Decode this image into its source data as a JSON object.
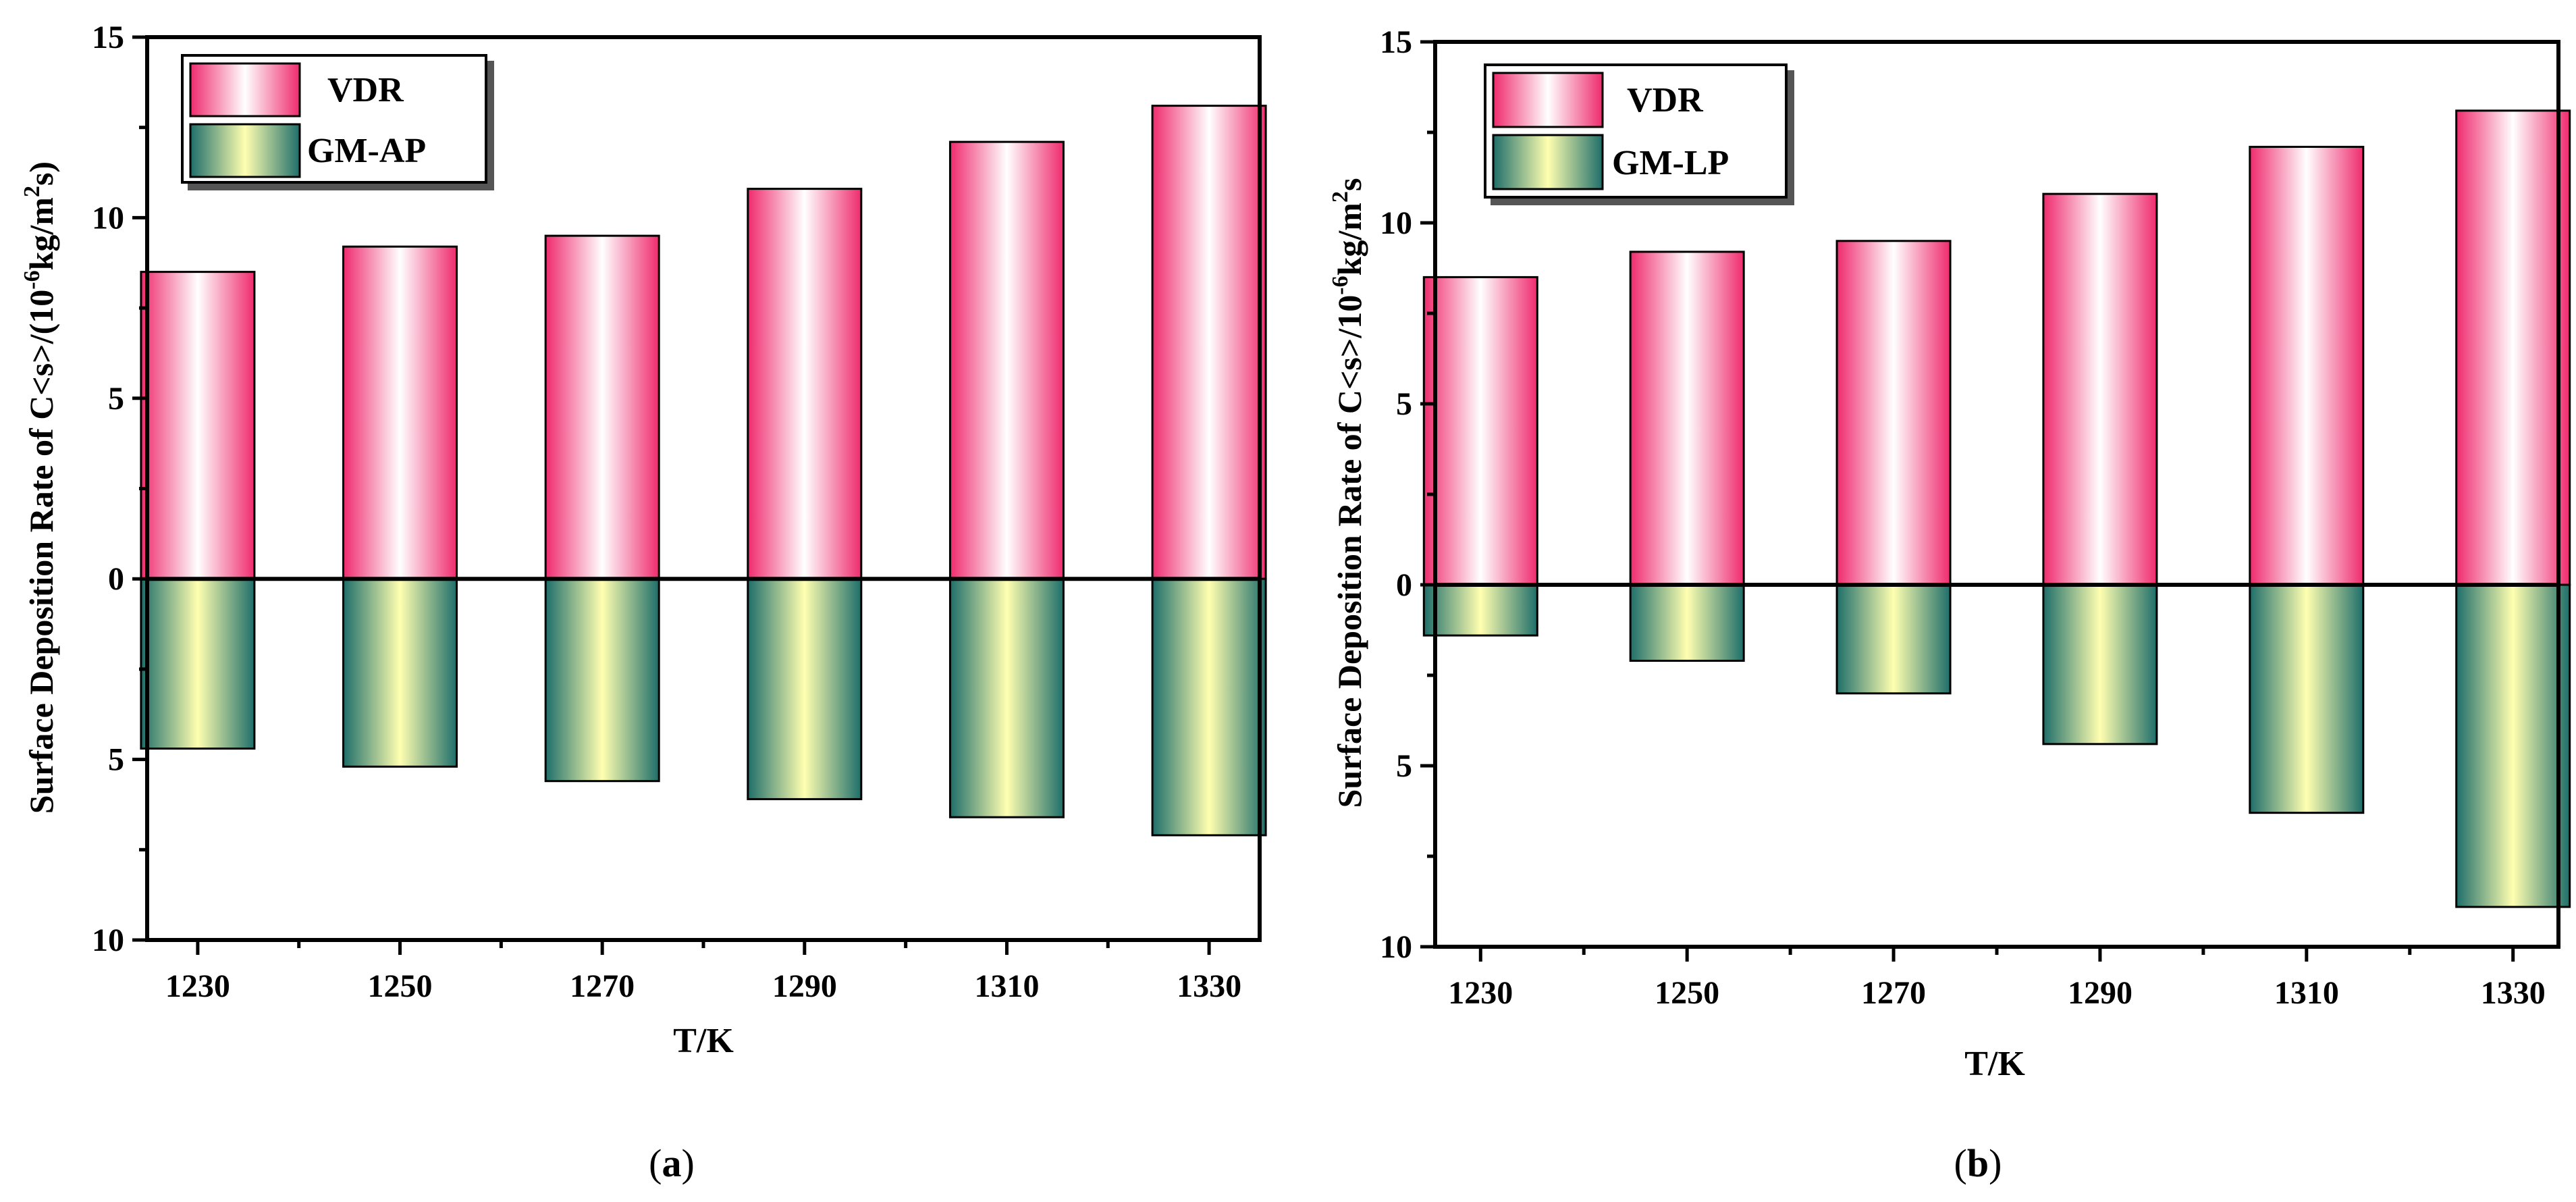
{
  "colors": {
    "vdr_edge": "#ef2b6e",
    "vdr_center": "#ffffff",
    "gm_edge": "#1e6e6a",
    "gm_center": "#ffffb0",
    "axis": "#000000"
  },
  "chart_data": [
    {
      "type": "bar",
      "panel": "a",
      "caption": "(a)",
      "caption_letter": "a",
      "categories": [
        "1230",
        "1250",
        "1270",
        "1290",
        "1310",
        "1330"
      ],
      "xlabel": "T/K",
      "ylabel": "Surface Deposition Rate of C<s>/(10",
      "ylabel_exp": "-6",
      "ylabel_mid": "kg/m",
      "ylabel_exp2": "2",
      "ylabel_tail": "s)",
      "ylim": [
        -10,
        15
      ],
      "yticks": [
        -10,
        -5,
        0,
        5,
        10,
        15
      ],
      "ytick_labels": [
        "10",
        "5",
        "0",
        "5",
        "10",
        "15"
      ],
      "legend_position": "top-left",
      "series": [
        {
          "name": "VDR",
          "values": [
            8.5,
            9.2,
            9.5,
            10.8,
            12.1,
            13.1
          ]
        },
        {
          "name": "GM-AP",
          "values": [
            -4.7,
            -5.2,
            -5.6,
            -6.1,
            -6.6,
            -7.1
          ]
        }
      ]
    },
    {
      "type": "bar",
      "panel": "b",
      "caption": "(b)",
      "caption_letter": "b",
      "categories": [
        "1230",
        "1250",
        "1270",
        "1290",
        "1310",
        "1330"
      ],
      "xlabel": "T/K",
      "ylabel": "Surface Deposition Rate of C<s>/10",
      "ylabel_exp": "-6",
      "ylabel_mid": "kg/m",
      "ylabel_exp2": "2",
      "ylabel_tail": "s",
      "ylim": [
        -10,
        15
      ],
      "yticks": [
        -10,
        -5,
        0,
        5,
        10,
        15
      ],
      "ytick_labels": [
        "10",
        "5",
        "0",
        "5",
        "10",
        "15"
      ],
      "legend_position": "top-left",
      "series": [
        {
          "name": "VDR",
          "values": [
            8.5,
            9.2,
            9.5,
            10.8,
            12.1,
            13.1
          ]
        },
        {
          "name": "GM-LP",
          "values": [
            -1.4,
            -2.1,
            -3.0,
            -4.4,
            -6.3,
            -8.9
          ]
        }
      ]
    }
  ]
}
